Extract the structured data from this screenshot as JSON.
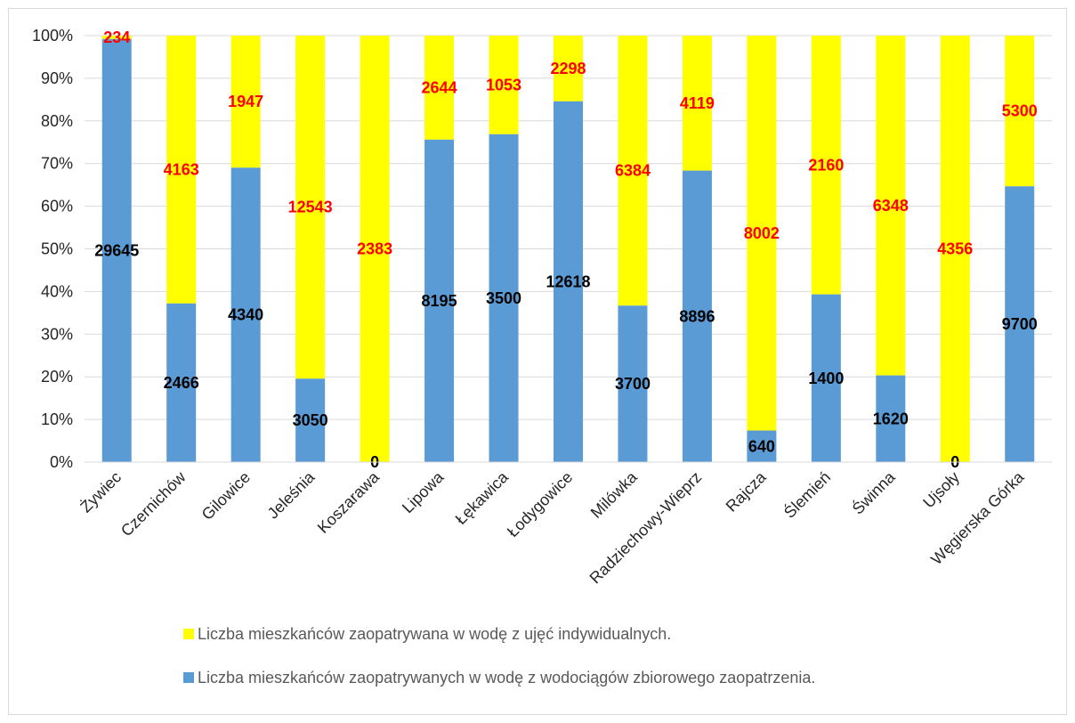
{
  "chart_data": {
    "type": "bar",
    "stacked": "percent",
    "categories": [
      "Żywiec",
      "Czernichów",
      "Gilowice",
      "Jeleśnia",
      "Koszarawa",
      "Lipowa",
      "Łękawica",
      "Łodygowice",
      "Milówka",
      "Radziechowy-Wieprz",
      "Rajcza",
      "Ślemień",
      "Świnna",
      "Ujsoły",
      "Węgierska Górka"
    ],
    "series": [
      {
        "name": "Liczba mieszkańców zaopatrywanych w wodę z wodociągów zbiorowego zaopatrzenia.",
        "color": "#5b9bd5",
        "label_color": "#000000",
        "values": [
          29645,
          2466,
          4340,
          3050,
          0,
          8195,
          3500,
          12618,
          3700,
          8896,
          640,
          1400,
          1620,
          0,
          9700
        ],
        "labels": [
          "29645",
          "2466",
          "4340",
          "3050",
          "0",
          "8195",
          "3500",
          "12618",
          "3700",
          "8896",
          "640",
          "1400",
          "1620",
          "0",
          "9700"
        ]
      },
      {
        "name": "Liczba  mieszkańców zaopatrywana w wodę z ujęć indywidualnych.",
        "color": "#ffff00",
        "label_color": "#ff0000",
        "values": [
          234,
          4163,
          1947,
          12543,
          2383,
          2644,
          1053,
          2298,
          6384,
          4119,
          8002,
          2160,
          6348,
          4356,
          5300
        ],
        "labels": [
          "234",
          "4163",
          "1947",
          "12543",
          "2383",
          "2644",
          "1053",
          "2298",
          "6384",
          "4119",
          "8002",
          "2160",
          "6348",
          "4356",
          "5300"
        ]
      }
    ],
    "y_ticks": [
      "0%",
      "10%",
      "20%",
      "30%",
      "40%",
      "50%",
      "60%",
      "70%",
      "80%",
      "90%",
      "100%"
    ],
    "ylim": [
      0,
      100
    ],
    "grid": true,
    "legend_position": "bottom",
    "legend_order": [
      1,
      0
    ]
  }
}
